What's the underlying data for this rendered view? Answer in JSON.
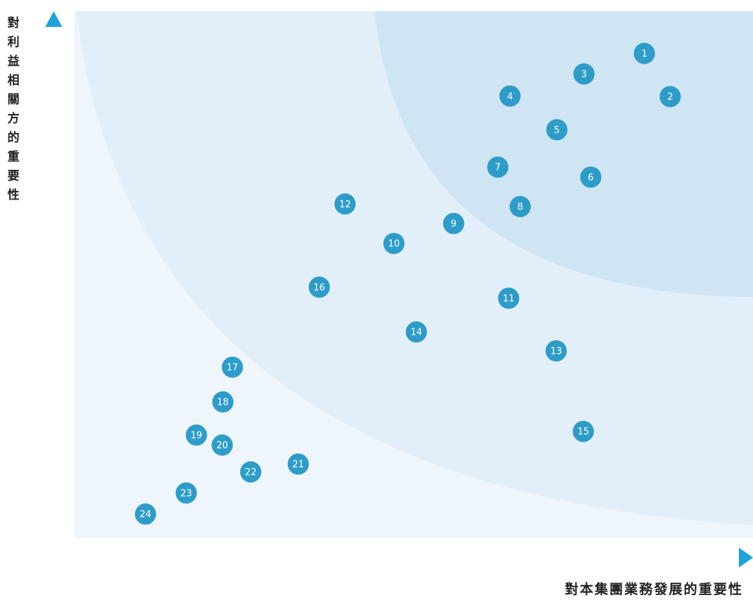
{
  "chart_data": {
    "type": "scatter",
    "xlabel": "對本集團業務發展的重要性",
    "ylabel": "對利益相關方的重要性",
    "xlim": [
      0,
      100
    ],
    "ylim": [
      0,
      100
    ],
    "grid": false,
    "points": [
      {
        "label": "1",
        "x": 84.0,
        "y": 92.0
      },
      {
        "label": "2",
        "x": 87.8,
        "y": 83.8
      },
      {
        "label": "3",
        "x": 75.1,
        "y": 88.1
      },
      {
        "label": "4",
        "x": 64.2,
        "y": 83.9
      },
      {
        "label": "5",
        "x": 71.1,
        "y": 77.5
      },
      {
        "label": "6",
        "x": 76.1,
        "y": 68.5
      },
      {
        "label": "7",
        "x": 62.4,
        "y": 70.4
      },
      {
        "label": "8",
        "x": 65.7,
        "y": 62.9
      },
      {
        "label": "9",
        "x": 55.9,
        "y": 59.7
      },
      {
        "label": "10",
        "x": 47.1,
        "y": 55.9
      },
      {
        "label": "11",
        "x": 64.0,
        "y": 45.5
      },
      {
        "label": "12",
        "x": 39.9,
        "y": 63.4
      },
      {
        "label": "13",
        "x": 71.0,
        "y": 35.5
      },
      {
        "label": "14",
        "x": 50.4,
        "y": 39.1
      },
      {
        "label": "15",
        "x": 75.0,
        "y": 20.2
      },
      {
        "label": "16",
        "x": 36.1,
        "y": 47.6
      },
      {
        "label": "17",
        "x": 23.3,
        "y": 32.4
      },
      {
        "label": "18",
        "x": 21.9,
        "y": 25.8
      },
      {
        "label": "19",
        "x": 18.0,
        "y": 19.5
      },
      {
        "label": "20",
        "x": 21.8,
        "y": 17.6
      },
      {
        "label": "21",
        "x": 33.0,
        "y": 14.0
      },
      {
        "label": "22",
        "x": 26.0,
        "y": 12.5
      },
      {
        "label": "23",
        "x": 16.5,
        "y": 8.5
      },
      {
        "label": "24",
        "x": 10.5,
        "y": 4.5
      }
    ]
  },
  "colors": {
    "point": "#2e9cc9",
    "axis": "#1fa1dc",
    "zone_outer": "#eef5fb",
    "zone_middle": "#e2eff9",
    "zone_inner": "#d0e5f4"
  }
}
